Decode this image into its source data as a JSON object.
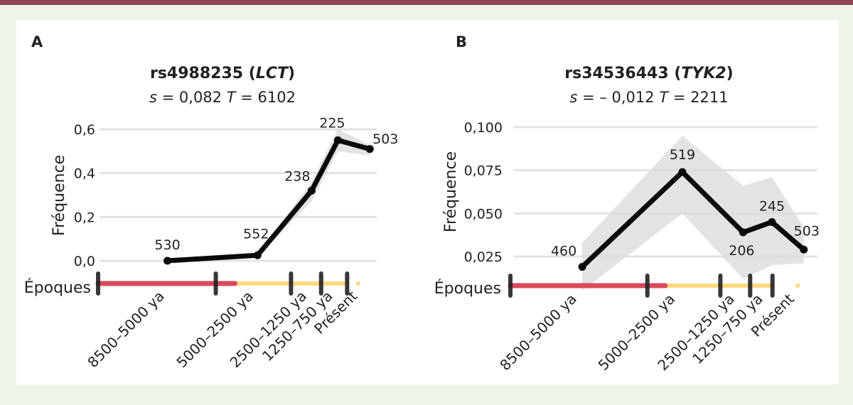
{
  "frame": {
    "bar_color": "#8f4553",
    "background": "#eef4e8"
  },
  "chart_data": [
    {
      "type": "line",
      "panel_letter": "A",
      "title": "rs4988235 (LCT)",
      "title_snp": "rs4988235",
      "title_gene": "LCT",
      "subtitle": {
        "s_label": "s",
        "s_value": "= 0,082",
        "t_label": "T",
        "t_value": "= 6102"
      },
      "ylabel": "Fréquence",
      "xlabel": "Époques",
      "ylim": [
        0,
        0.6
      ],
      "yticks": [
        {
          "value": 0.0,
          "label": "0,0"
        },
        {
          "value": 0.2,
          "label": "0,2"
        },
        {
          "value": 0.4,
          "label": "0,4"
        },
        {
          "value": 0.6,
          "label": "0,6"
        }
      ],
      "grid": true,
      "categories": [
        "8500–5000 ya",
        "5000–2500 ya",
        "2500–1250 ya",
        "1250–750 ya",
        "Présent"
      ],
      "series": [
        {
          "name": "Fréquence",
          "values": [
            0.0,
            0.025,
            0.32,
            0.55,
            0.51
          ],
          "ci_low": [
            0.0,
            0.02,
            0.27,
            0.5,
            0.48
          ],
          "ci_high": [
            0.0,
            0.03,
            0.36,
            0.6,
            0.53
          ],
          "sample_sizes": [
            "530",
            "552",
            "238",
            "225",
            "503"
          ]
        }
      ],
      "point_positions": [
        0.245,
        0.57,
        0.765,
        0.86,
        0.975
      ],
      "timeline": {
        "ticks": [
          0,
          0.43,
          0.705,
          0.815,
          0.91
        ],
        "red_end": 0.5,
        "end": 0.91,
        "dot": 0.95,
        "red_color": "#d94a5a",
        "yellow_color": "#fdd880",
        "label_positions": [
          0.245,
          0.57,
          0.765,
          0.86,
          0.95
        ]
      }
    },
    {
      "type": "line",
      "panel_letter": "B",
      "title": "rs34536443 (TYK2)",
      "title_snp": "rs34536443",
      "title_gene": "TYK2",
      "subtitle": {
        "s_label": "s",
        "s_value": "= – 0,012",
        "t_label": "T",
        "t_value": "= 2211"
      },
      "ylabel": "Fréquence",
      "xlabel": "Époques",
      "ylim": [
        0.025,
        0.1
      ],
      "yticks": [
        {
          "value": 0.025,
          "label": "0,025"
        },
        {
          "value": 0.05,
          "label": "0,050"
        },
        {
          "value": 0.075,
          "label": "0,075"
        },
        {
          "value": 0.1,
          "label": "0,100"
        }
      ],
      "grid": true,
      "categories": [
        "8500–5000 ya",
        "5000–2500 ya",
        "2500–1250 ya",
        "1250–750 ya",
        "Présent"
      ],
      "series": [
        {
          "name": "Fréquence",
          "values": [
            0.019,
            0.074,
            0.039,
            0.045,
            0.029
          ],
          "ci_low": [
            0.005,
            0.05,
            0.012,
            0.02,
            0.021
          ],
          "ci_high": [
            0.033,
            0.095,
            0.066,
            0.071,
            0.042
          ],
          "sample_sizes": [
            "460",
            "519",
            "206",
            "245",
            "503"
          ]
        }
      ],
      "point_positions": [
        0.225,
        0.555,
        0.755,
        0.85,
        0.955
      ],
      "timeline": {
        "ticks": [
          0,
          0.46,
          0.705,
          0.805,
          0.88
        ],
        "red_end": 0.52,
        "end": 0.88,
        "dot": 0.965,
        "red_color": "#d94a5a",
        "yellow_color": "#fdd880",
        "label_positions": [
          0.225,
          0.555,
          0.755,
          0.85,
          0.955
        ]
      }
    }
  ]
}
